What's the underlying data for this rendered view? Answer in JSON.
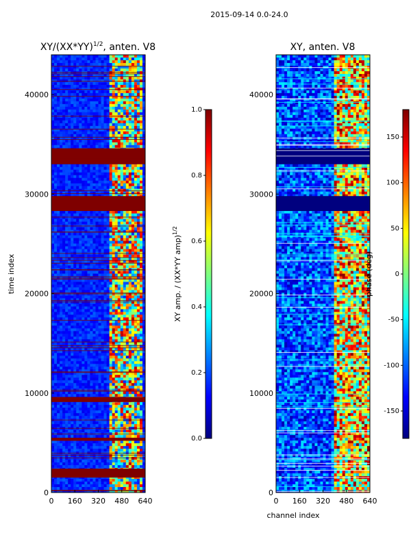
{
  "figure": {
    "suptitle": "2015-09-14 0.0-24.0"
  },
  "colors": {
    "background": "#ffffff",
    "axis": "#000000",
    "jet": [
      "#00007f",
      "#0000ff",
      "#007fff",
      "#00ffff",
      "#7fff7f",
      "#ffff00",
      "#ff7f00",
      "#ff0000",
      "#7f0000"
    ]
  },
  "chart_data": [
    {
      "type": "heatmap",
      "title": "XY/(XX*YY)",
      "title_exp": "1/2",
      "title_suffix": ", anten. V8",
      "xlabel": "",
      "ylabel": "time index",
      "xlim": [
        0,
        640
      ],
      "ylim": [
        0,
        44000
      ],
      "x_ticks": [
        "0",
        "160",
        "320",
        "480",
        "640"
      ],
      "y_ticks": [
        "0",
        "10000",
        "20000",
        "30000",
        "40000"
      ],
      "colorbar": {
        "label": "XY amp. / (XX*YY amp)",
        "label_exp": "1/2",
        "range": [
          0.0,
          1.0
        ],
        "ticks": [
          "0.0",
          "0.2",
          "0.4",
          "0.6",
          "0.8",
          "1.0"
        ]
      },
      "saturated_bands": [
        [
          33000,
          34600
        ],
        [
          28300,
          29800
        ],
        [
          9100,
          9600
        ],
        [
          5200,
          5500
        ],
        [
          1500,
          2400
        ]
      ],
      "active_channel_range": [
        400,
        620
      ]
    },
    {
      "type": "heatmap",
      "title": "XY, anten. V8",
      "xlabel": "channel index",
      "ylabel": "",
      "xlim": [
        0,
        640
      ],
      "ylim": [
        0,
        44000
      ],
      "x_ticks": [
        "0",
        "160",
        "320",
        "480",
        "640"
      ],
      "y_ticks": [
        "0",
        "10000",
        "20000",
        "30000",
        "40000"
      ],
      "colorbar": {
        "label": "phase (deg)",
        "range": [
          -180,
          180
        ],
        "ticks": [
          "-150",
          "-100",
          "-50",
          "0",
          "50",
          "100",
          "150"
        ]
      },
      "low_value_bands": [
        [
          33000,
          34600
        ],
        [
          28300,
          29800
        ]
      ],
      "active_channel_range": [
        400,
        640
      ]
    }
  ]
}
